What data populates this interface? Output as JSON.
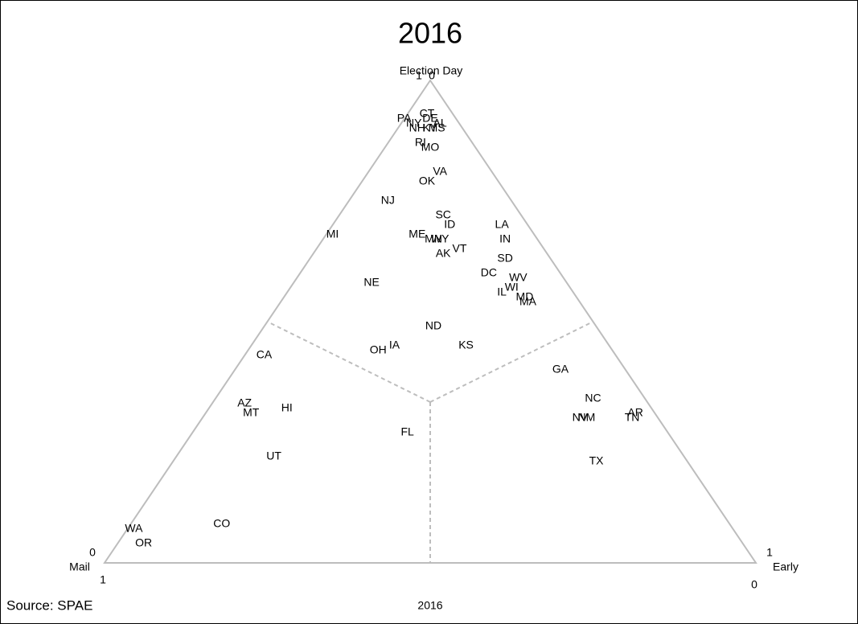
{
  "chart_data": {
    "type": "ternary",
    "title": "2016",
    "caption": "2016",
    "source": "Source:  SPAE",
    "axis_labels": {
      "election_day": "Election Day",
      "mail": "Mail",
      "early": "Early"
    },
    "ticks": {
      "election_day": [
        1,
        0
      ],
      "mail": [
        0,
        1
      ],
      "early": [
        1,
        0
      ]
    },
    "labels": [
      "PA",
      "CT",
      "NY",
      "DE",
      "MS",
      "NH",
      "KY",
      "AL",
      "RI",
      "MO",
      "VA",
      "OK",
      "NJ",
      "MI",
      "SC",
      "ID",
      "ME",
      "MN",
      "WY",
      "LA",
      "IN",
      "AK",
      "VT",
      "SD",
      "DC",
      "WV",
      "WI",
      "IL",
      "MD",
      "MA",
      "NE",
      "ND",
      "OH",
      "IA",
      "KS",
      "CA",
      "GA",
      "AZ",
      "MT",
      "HI",
      "NC",
      "NV",
      "NM",
      "AR",
      "TN",
      "FL",
      "UT",
      "TX",
      "CO",
      "WA",
      "OR"
    ],
    "election_day": [
      0.92,
      0.93,
      0.91,
      0.92,
      0.9,
      0.9,
      0.9,
      0.91,
      0.87,
      0.86,
      0.81,
      0.79,
      0.75,
      0.68,
      0.72,
      0.7,
      0.68,
      0.67,
      0.67,
      0.7,
      0.67,
      0.64,
      0.65,
      0.63,
      0.6,
      0.59,
      0.57,
      0.56,
      0.55,
      0.54,
      0.58,
      0.49,
      0.44,
      0.45,
      0.45,
      0.43,
      0.4,
      0.33,
      0.31,
      0.32,
      0.34,
      0.3,
      0.3,
      0.31,
      0.3,
      0.27,
      0.22,
      0.21,
      0.08,
      0.07,
      0.04
    ],
    "early": [
      0.0,
      0.03,
      0.02,
      0.04,
      0.06,
      0.03,
      0.05,
      0.06,
      0.05,
      0.07,
      0.11,
      0.1,
      0.06,
      0.01,
      0.16,
      0.18,
      0.14,
      0.17,
      0.18,
      0.26,
      0.28,
      0.2,
      0.22,
      0.3,
      0.29,
      0.34,
      0.34,
      0.33,
      0.37,
      0.38,
      0.12,
      0.26,
      0.2,
      0.22,
      0.33,
      0.03,
      0.5,
      0.05,
      0.07,
      0.12,
      0.58,
      0.58,
      0.59,
      0.66,
      0.66,
      0.33,
      0.15,
      0.65,
      0.14,
      0.01,
      0.04
    ],
    "mail": [
      0.08,
      0.04,
      0.07,
      0.04,
      0.04,
      0.07,
      0.05,
      0.03,
      0.08,
      0.07,
      0.08,
      0.11,
      0.19,
      0.31,
      0.12,
      0.12,
      0.18,
      0.16,
      0.15,
      0.04,
      0.05,
      0.16,
      0.13,
      0.07,
      0.11,
      0.07,
      0.09,
      0.11,
      0.08,
      0.08,
      0.3,
      0.25,
      0.36,
      0.33,
      0.22,
      0.54,
      0.1,
      0.62,
      0.62,
      0.56,
      0.08,
      0.12,
      0.11,
      0.03,
      0.04,
      0.4,
      0.63,
      0.14,
      0.78,
      0.92,
      0.92
    ]
  }
}
